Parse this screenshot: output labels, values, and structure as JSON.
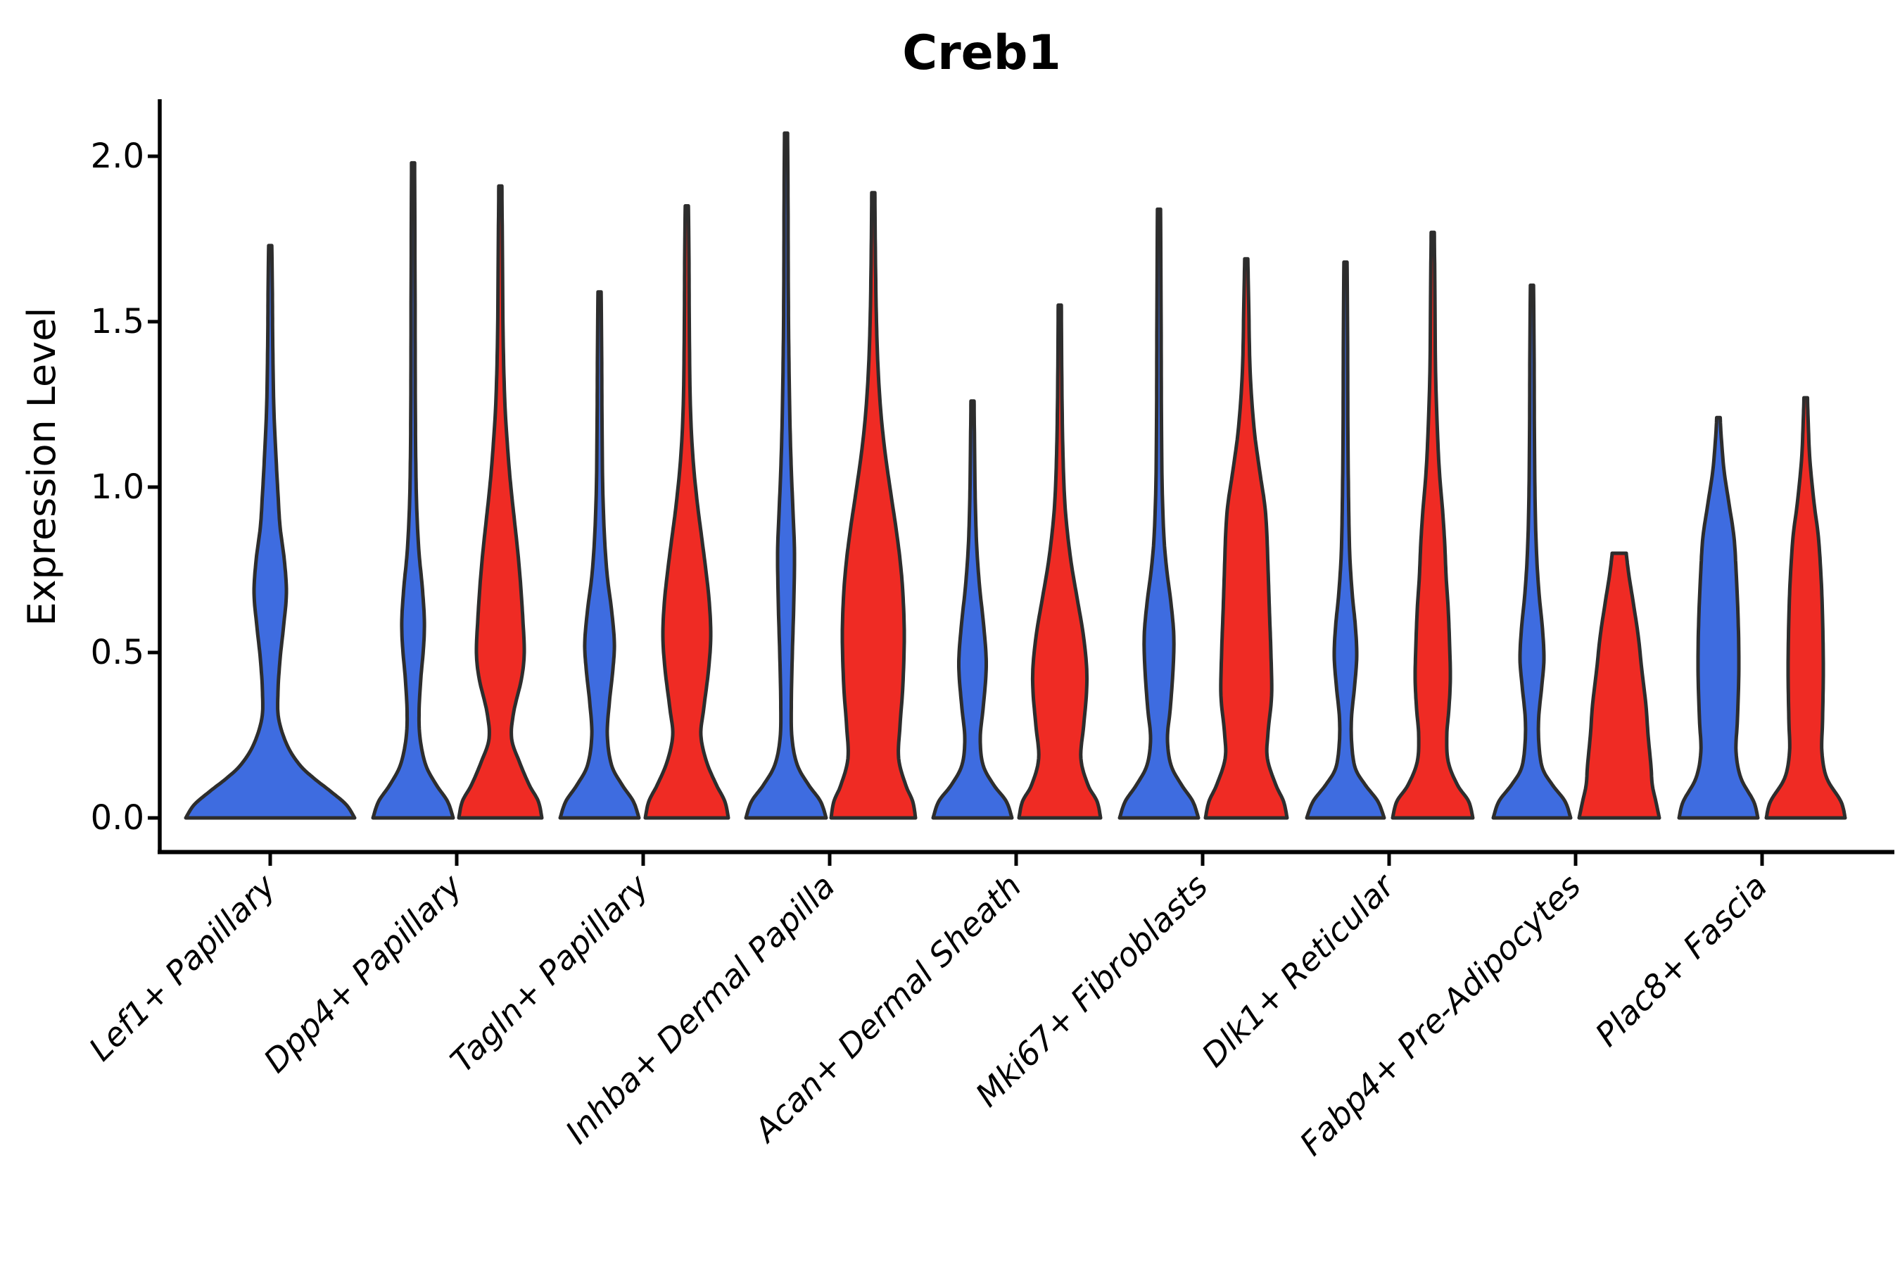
{
  "chart_data": {
    "type": "violin",
    "title": "Creb1",
    "ylabel": "Expression Level",
    "xlabel": "",
    "yticks": [
      {
        "value": 0.0,
        "label": "0.0"
      },
      {
        "value": 0.5,
        "label": "0.5"
      },
      {
        "value": 1.0,
        "label": "1.0"
      },
      {
        "value": 1.5,
        "label": "1.5"
      },
      {
        "value": 2.0,
        "label": "2.0"
      }
    ],
    "ylim": [
      -0.1,
      2.18
    ],
    "grid": false,
    "legend": "none",
    "categories": [
      "Lef1+ Papillary",
      "Dpp4+ Papillary",
      "Tagln+ Papillary",
      "Inhba+ Dermal Papilla",
      "Acan+ Dermal Sheath",
      "Mki67+ Fibroblasts",
      "Dlk1+ Reticular",
      "Fabp4+ Pre-Adipocytes",
      "Plac8+ Fascia"
    ],
    "colors": {
      "blue_fill": "#3e6ce0",
      "red_fill": "#ef2b24",
      "outline": "#2d2d2d",
      "axis": "#000000"
    },
    "violins": [
      {
        "category_index": 0,
        "side": "single",
        "color_key": "blue",
        "max_expression": 1.73,
        "flat_top": false,
        "profile": [
          [
            0,
            120
          ],
          [
            0.04,
            108
          ],
          [
            0.08,
            86
          ],
          [
            0.12,
            62
          ],
          [
            0.16,
            42
          ],
          [
            0.22,
            24
          ],
          [
            0.3,
            12
          ],
          [
            0.38,
            11
          ],
          [
            0.48,
            14
          ],
          [
            0.58,
            19
          ],
          [
            0.68,
            23
          ],
          [
            0.78,
            20
          ],
          [
            0.88,
            14
          ],
          [
            0.98,
            11
          ],
          [
            1.1,
            8
          ],
          [
            1.25,
            5
          ],
          [
            1.45,
            3.5
          ],
          [
            1.6,
            3
          ],
          [
            1.73,
            2.2
          ]
        ]
      },
      {
        "category_index": 1,
        "side": "left",
        "color_key": "blue",
        "max_expression": 1.98,
        "flat_top": false,
        "profile": [
          [
            0,
            57
          ],
          [
            0.05,
            49
          ],
          [
            0.1,
            33
          ],
          [
            0.16,
            18
          ],
          [
            0.24,
            10
          ],
          [
            0.32,
            8.5
          ],
          [
            0.42,
            11
          ],
          [
            0.52,
            15
          ],
          [
            0.6,
            16
          ],
          [
            0.7,
            13
          ],
          [
            0.8,
            8.5
          ],
          [
            0.92,
            5.5
          ],
          [
            1.05,
            4
          ],
          [
            1.25,
            3.2
          ],
          [
            1.6,
            2.8
          ],
          [
            1.98,
            2.2
          ]
        ]
      },
      {
        "category_index": 1,
        "side": "right",
        "color_key": "red",
        "max_expression": 1.91,
        "flat_top": false,
        "profile": [
          [
            0,
            59
          ],
          [
            0.05,
            54
          ],
          [
            0.1,
            41
          ],
          [
            0.17,
            27
          ],
          [
            0.24,
            16
          ],
          [
            0.32,
            19
          ],
          [
            0.42,
            30
          ],
          [
            0.5,
            34
          ],
          [
            0.6,
            32
          ],
          [
            0.7,
            29
          ],
          [
            0.8,
            25
          ],
          [
            0.9,
            20
          ],
          [
            1.0,
            15
          ],
          [
            1.1,
            11
          ],
          [
            1.25,
            6.5
          ],
          [
            1.45,
            4
          ],
          [
            1.7,
            3
          ],
          [
            1.91,
            2.2
          ]
        ]
      },
      {
        "category_index": 2,
        "side": "left",
        "color_key": "blue",
        "max_expression": 1.59,
        "flat_top": false,
        "profile": [
          [
            0,
            56
          ],
          [
            0.05,
            48
          ],
          [
            0.1,
            32
          ],
          [
            0.16,
            17
          ],
          [
            0.25,
            11
          ],
          [
            0.35,
            14
          ],
          [
            0.45,
            19
          ],
          [
            0.53,
            21
          ],
          [
            0.63,
            17
          ],
          [
            0.73,
            11
          ],
          [
            0.85,
            7
          ],
          [
            1.0,
            4.5
          ],
          [
            1.2,
            3.5
          ],
          [
            1.4,
            3
          ],
          [
            1.59,
            2.2
          ]
        ]
      },
      {
        "category_index": 2,
        "side": "right",
        "color_key": "red",
        "max_expression": 1.85,
        "flat_top": false,
        "profile": [
          [
            0,
            59
          ],
          [
            0.05,
            54
          ],
          [
            0.1,
            42
          ],
          [
            0.17,
            28
          ],
          [
            0.25,
            20
          ],
          [
            0.33,
            24
          ],
          [
            0.45,
            31
          ],
          [
            0.55,
            34
          ],
          [
            0.65,
            32
          ],
          [
            0.75,
            27
          ],
          [
            0.85,
            21
          ],
          [
            0.95,
            15
          ],
          [
            1.08,
            9
          ],
          [
            1.25,
            5
          ],
          [
            1.5,
            3.5
          ],
          [
            1.7,
            3
          ],
          [
            1.85,
            2.2
          ]
        ]
      },
      {
        "category_index": 3,
        "side": "left",
        "color_key": "blue",
        "max_expression": 2.07,
        "flat_top": false,
        "profile": [
          [
            0,
            57
          ],
          [
            0.05,
            49
          ],
          [
            0.1,
            32
          ],
          [
            0.16,
            16
          ],
          [
            0.24,
            8.5
          ],
          [
            0.35,
            7.5
          ],
          [
            0.5,
            9
          ],
          [
            0.65,
            11
          ],
          [
            0.8,
            12
          ],
          [
            0.92,
            10
          ],
          [
            1.05,
            7.5
          ],
          [
            1.2,
            5.5
          ],
          [
            1.4,
            4
          ],
          [
            1.6,
            3.2
          ],
          [
            1.85,
            2.8
          ],
          [
            2.07,
            2.2
          ]
        ]
      },
      {
        "category_index": 3,
        "side": "right",
        "color_key": "red",
        "max_expression": 1.89,
        "flat_top": false,
        "profile": [
          [
            0,
            60
          ],
          [
            0.05,
            56
          ],
          [
            0.1,
            46
          ],
          [
            0.18,
            36
          ],
          [
            0.28,
            38
          ],
          [
            0.4,
            42
          ],
          [
            0.55,
            44
          ],
          [
            0.68,
            42
          ],
          [
            0.78,
            38
          ],
          [
            0.88,
            32
          ],
          [
            0.98,
            25
          ],
          [
            1.1,
            17
          ],
          [
            1.22,
            11
          ],
          [
            1.35,
            7
          ],
          [
            1.5,
            4.5
          ],
          [
            1.7,
            3
          ],
          [
            1.89,
            2.2
          ]
        ]
      },
      {
        "category_index": 4,
        "side": "left",
        "color_key": "blue",
        "max_expression": 1.26,
        "flat_top": false,
        "profile": [
          [
            0,
            56
          ],
          [
            0.05,
            48
          ],
          [
            0.1,
            30
          ],
          [
            0.16,
            15
          ],
          [
            0.24,
            11
          ],
          [
            0.33,
            15
          ],
          [
            0.43,
            19
          ],
          [
            0.5,
            19
          ],
          [
            0.6,
            15
          ],
          [
            0.7,
            10
          ],
          [
            0.82,
            6
          ],
          [
            0.95,
            4
          ],
          [
            1.1,
            3
          ],
          [
            1.26,
            2.2
          ]
        ]
      },
      {
        "category_index": 4,
        "side": "right",
        "color_key": "red",
        "max_expression": 1.55,
        "flat_top": false,
        "profile": [
          [
            0,
            58
          ],
          [
            0.05,
            53
          ],
          [
            0.1,
            40
          ],
          [
            0.18,
            30
          ],
          [
            0.28,
            34
          ],
          [
            0.38,
            38
          ],
          [
            0.46,
            38
          ],
          [
            0.56,
            33
          ],
          [
            0.66,
            25
          ],
          [
            0.76,
            17
          ],
          [
            0.86,
            11
          ],
          [
            0.96,
            7
          ],
          [
            1.1,
            4.5
          ],
          [
            1.3,
            3
          ],
          [
            1.55,
            2.2
          ]
        ]
      },
      {
        "category_index": 5,
        "side": "left",
        "color_key": "blue",
        "max_expression": 1.84,
        "flat_top": false,
        "profile": [
          [
            0,
            56
          ],
          [
            0.05,
            48
          ],
          [
            0.1,
            32
          ],
          [
            0.16,
            17
          ],
          [
            0.24,
            12
          ],
          [
            0.33,
            16
          ],
          [
            0.45,
            20
          ],
          [
            0.55,
            21
          ],
          [
            0.65,
            17
          ],
          [
            0.75,
            11
          ],
          [
            0.85,
            7
          ],
          [
            1.0,
            4.5
          ],
          [
            1.2,
            3.5
          ],
          [
            1.5,
            3
          ],
          [
            1.84,
            2.2
          ]
        ]
      },
      {
        "category_index": 5,
        "side": "right",
        "color_key": "red",
        "max_expression": 1.69,
        "flat_top": false,
        "profile": [
          [
            0,
            58
          ],
          [
            0.05,
            53
          ],
          [
            0.1,
            42
          ],
          [
            0.18,
            30
          ],
          [
            0.26,
            31
          ],
          [
            0.37,
            36
          ],
          [
            0.5,
            35
          ],
          [
            0.62,
            33
          ],
          [
            0.75,
            31
          ],
          [
            0.87,
            29
          ],
          [
            0.95,
            26
          ],
          [
            1.05,
            19
          ],
          [
            1.18,
            11
          ],
          [
            1.35,
            5.5
          ],
          [
            1.55,
            3.5
          ],
          [
            1.69,
            2.2
          ]
        ]
      },
      {
        "category_index": 6,
        "side": "left",
        "color_key": "blue",
        "max_expression": 1.68,
        "flat_top": false,
        "profile": [
          [
            0,
            55
          ],
          [
            0.05,
            46
          ],
          [
            0.1,
            28
          ],
          [
            0.15,
            14
          ],
          [
            0.22,
            9
          ],
          [
            0.3,
            8.5
          ],
          [
            0.4,
            13
          ],
          [
            0.49,
            16
          ],
          [
            0.58,
            14
          ],
          [
            0.68,
            9.5
          ],
          [
            0.8,
            6
          ],
          [
            0.95,
            4.5
          ],
          [
            1.15,
            3.5
          ],
          [
            1.45,
            3
          ],
          [
            1.68,
            2.2
          ]
        ]
      },
      {
        "category_index": 6,
        "side": "right",
        "color_key": "red",
        "max_expression": 1.77,
        "flat_top": false,
        "profile": [
          [
            0,
            57
          ],
          [
            0.05,
            51
          ],
          [
            0.1,
            35
          ],
          [
            0.17,
            22
          ],
          [
            0.25,
            20
          ],
          [
            0.33,
            23
          ],
          [
            0.42,
            25
          ],
          [
            0.52,
            24
          ],
          [
            0.63,
            22
          ],
          [
            0.73,
            19
          ],
          [
            0.83,
            17
          ],
          [
            0.93,
            14
          ],
          [
            1.03,
            10
          ],
          [
            1.15,
            7
          ],
          [
            1.35,
            4
          ],
          [
            1.6,
            3
          ],
          [
            1.77,
            2.2
          ]
        ]
      },
      {
        "category_index": 7,
        "side": "left",
        "color_key": "blue",
        "max_expression": 1.61,
        "flat_top": false,
        "profile": [
          [
            0,
            55
          ],
          [
            0.05,
            47
          ],
          [
            0.1,
            29
          ],
          [
            0.15,
            15
          ],
          [
            0.22,
            10
          ],
          [
            0.3,
            9.5
          ],
          [
            0.4,
            14
          ],
          [
            0.48,
            17
          ],
          [
            0.57,
            15
          ],
          [
            0.68,
            10
          ],
          [
            0.8,
            6.5
          ],
          [
            0.95,
            4.5
          ],
          [
            1.15,
            3.5
          ],
          [
            1.4,
            3
          ],
          [
            1.61,
            2.2
          ]
        ]
      },
      {
        "category_index": 7,
        "side": "right",
        "color_key": "red",
        "max_expression": 0.8,
        "flat_top": true,
        "profile": [
          [
            0,
            57
          ],
          [
            0.05,
            52
          ],
          [
            0.1,
            47
          ],
          [
            0.16,
            45
          ],
          [
            0.25,
            41
          ],
          [
            0.34,
            38
          ],
          [
            0.45,
            32
          ],
          [
            0.55,
            27
          ],
          [
            0.65,
            20
          ],
          [
            0.73,
            14
          ],
          [
            0.78,
            11
          ],
          [
            0.8,
            10
          ]
        ]
      },
      {
        "category_index": 8,
        "side": "left",
        "color_key": "blue",
        "max_expression": 1.21,
        "flat_top": false,
        "profile": [
          [
            0,
            56
          ],
          [
            0.05,
            50
          ],
          [
            0.12,
            32
          ],
          [
            0.2,
            25
          ],
          [
            0.3,
            27
          ],
          [
            0.45,
            29
          ],
          [
            0.6,
            28
          ],
          [
            0.75,
            25
          ],
          [
            0.85,
            22
          ],
          [
            0.95,
            15
          ],
          [
            1.05,
            8
          ],
          [
            1.15,
            4
          ],
          [
            1.21,
            2.5
          ]
        ]
      },
      {
        "category_index": 8,
        "side": "right",
        "color_key": "red",
        "max_expression": 1.27,
        "flat_top": false,
        "profile": [
          [
            0,
            56
          ],
          [
            0.05,
            50
          ],
          [
            0.12,
            30
          ],
          [
            0.2,
            23
          ],
          [
            0.3,
            24
          ],
          [
            0.45,
            25
          ],
          [
            0.6,
            24
          ],
          [
            0.72,
            22
          ],
          [
            0.85,
            18
          ],
          [
            0.95,
            12
          ],
          [
            1.08,
            6
          ],
          [
            1.2,
            3.5
          ],
          [
            1.27,
            2.5
          ]
        ]
      }
    ]
  }
}
